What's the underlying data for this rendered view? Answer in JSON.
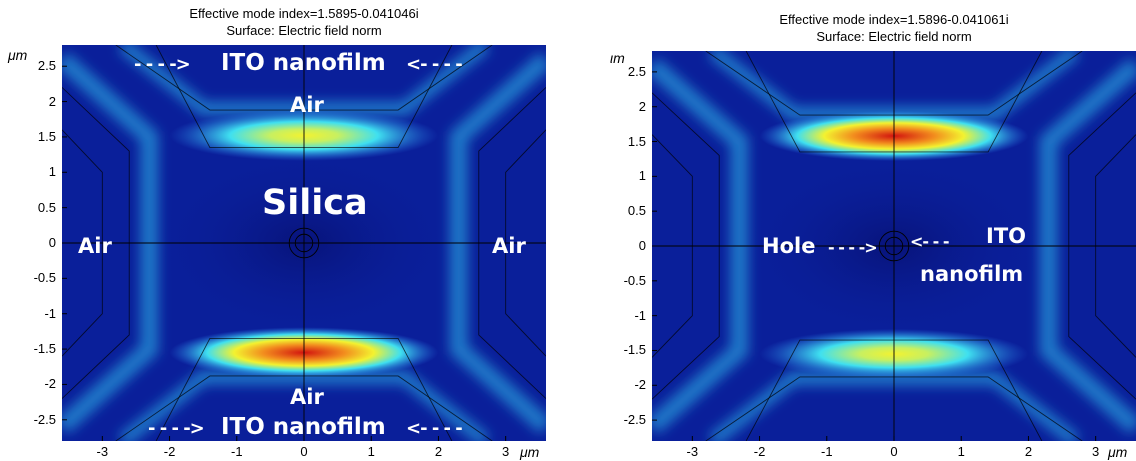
{
  "chart_data": [
    {
      "type": "heatmap",
      "title": "Effective mode index=1.5895-0.041046i",
      "subtitle": "Surface: Electric field norm",
      "y_unit": "μm",
      "x_unit": "μm",
      "xlim": [
        -3.6,
        3.6
      ],
      "ylim": [
        -2.8,
        2.8
      ],
      "x_ticks": [
        -3,
        -2,
        -1,
        0,
        1,
        2,
        3
      ],
      "y_ticks": [
        2.5,
        2,
        1.5,
        1,
        0.5,
        0,
        -0.5,
        -1,
        -1.5,
        -2,
        -2.5
      ],
      "x_tick_labels": [
        "-3",
        "-2",
        "-1",
        "0",
        "1",
        "2",
        "3"
      ],
      "y_tick_labels": [
        "2.5",
        "2",
        "1.5",
        "1",
        "0.5",
        "0",
        "-0.5",
        "-1",
        "-1.5",
        "-2",
        "-2.5"
      ],
      "hotspots": [
        {
          "x": 0,
          "y": 1.52,
          "intensity": 0.62
        },
        {
          "x": 0,
          "y": -1.55,
          "intensity": 1.0
        }
      ],
      "annotations": {
        "top_film": "ITO nanofilm",
        "bottom_film": "ITO nanofilm",
        "top_air": "Air",
        "bottom_air": "Air",
        "left_air": "Air",
        "right_air": "Air",
        "core": "Silica",
        "arrow_right": "- - - ->",
        "arrow_left": "<- - - -"
      }
    },
    {
      "type": "heatmap",
      "title": "Effective mode index=1.5896-0.041061i",
      "subtitle": "Surface: Electric field norm",
      "y_unit": "ιm",
      "x_unit": "μm",
      "xlim": [
        -3.6,
        3.6
      ],
      "ylim": [
        -2.8,
        2.8
      ],
      "x_ticks": [
        -3,
        -2,
        -1,
        0,
        1,
        2,
        3
      ],
      "y_ticks": [
        2.5,
        2,
        1.5,
        1,
        0.5,
        0,
        -0.5,
        -1,
        -1.5,
        -2,
        -2.5
      ],
      "x_tick_labels": [
        "-3",
        "-2",
        "-1",
        "0",
        "1",
        "2",
        "3"
      ],
      "y_tick_labels": [
        "2.5",
        "2",
        "1.5",
        "1",
        "0.5",
        "0",
        "-0.5",
        "-1",
        "-1.5",
        "-2",
        "-2.5"
      ],
      "hotspots": [
        {
          "x": 0,
          "y": 1.58,
          "intensity": 1.0
        },
        {
          "x": 0,
          "y": -1.55,
          "intensity": 0.6
        }
      ],
      "annotations": {
        "hole": "Hole",
        "hole_arrow": "- - - ->",
        "ito_arrow": "<- - -",
        "ito_line1": "ITO",
        "ito_line2": "nanofilm"
      }
    }
  ],
  "colors": {
    "background": "#0a1f9a",
    "low": "#08137a",
    "mid": "#2a7fe8",
    "cyan": "#3fe0f0",
    "yellow": "#f3f230",
    "orange": "#f28c1e",
    "red": "#d2140f"
  }
}
